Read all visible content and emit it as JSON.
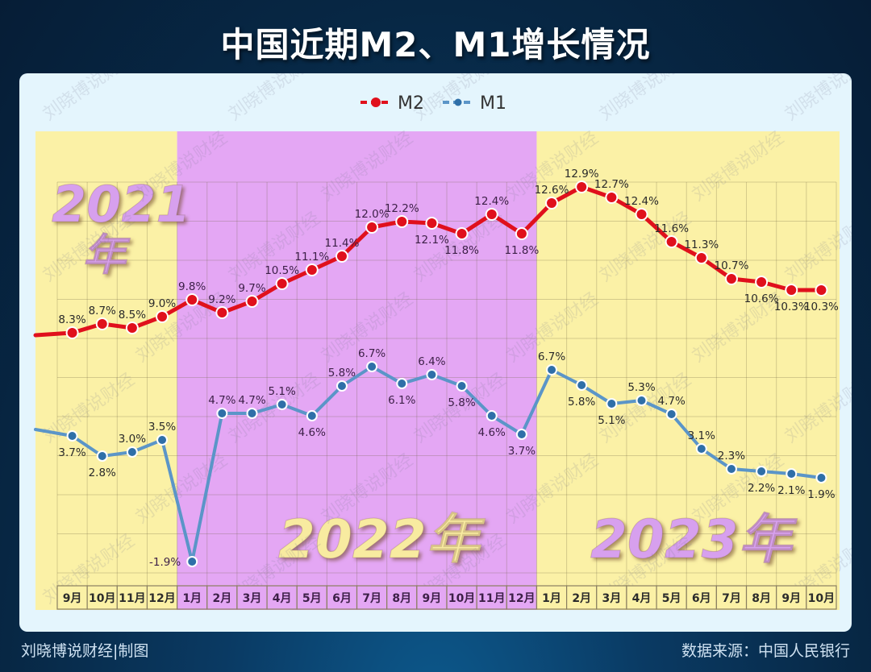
{
  "title": "中国近期M2、M1增长情况",
  "footer": {
    "credit": "刘晓博说财经|制图",
    "source": "数据来源：中国人民银行"
  },
  "watermark": "刘晓博说财经",
  "colors": {
    "m2": "#e0101c",
    "m1": "#5b95c8",
    "m1_marker": "#2f6fa8",
    "band_yellow": "#fbf1a6",
    "band_purple": "#e4a7f4",
    "year_lilac": "#d7a0ee",
    "year_cream": "#f8eba0"
  },
  "year_labels": {
    "y2021_line1": "2021",
    "y2021_line2": "年",
    "y2022": "2022年",
    "y2023": "2023年"
  },
  "chart_data": {
    "type": "line",
    "title": "中国近期M2、M1增长情况",
    "xlabel": "",
    "ylabel": "",
    "unit": "%",
    "legend": [
      "M2",
      "M1"
    ],
    "legend_position": "top-center",
    "grid": true,
    "categories": [
      "9月",
      "10月",
      "11月",
      "12月",
      "1月",
      "2月",
      "3月",
      "4月",
      "5月",
      "6月",
      "7月",
      "8月",
      "9月",
      "10月",
      "11月",
      "12月",
      "1月",
      "2月",
      "3月",
      "4月",
      "5月",
      "6月",
      "7月",
      "8月",
      "9月",
      "10月"
    ],
    "year_groups": [
      {
        "label": "2021年",
        "start": 0,
        "end": 3
      },
      {
        "label": "2022年",
        "start": 4,
        "end": 15
      },
      {
        "label": "2023年",
        "start": 16,
        "end": 25
      }
    ],
    "series": [
      {
        "name": "M2",
        "values": [
          8.3,
          8.7,
          8.5,
          9.0,
          9.8,
          9.2,
          9.7,
          10.5,
          11.1,
          11.4,
          12.0,
          12.2,
          12.1,
          11.8,
          12.4,
          11.8,
          12.6,
          12.9,
          12.7,
          12.4,
          11.6,
          11.3,
          10.7,
          10.6,
          10.3,
          10.3
        ],
        "labels": [
          "8.3%",
          "8.7%",
          "8.5%",
          "9.0%",
          "9.8%",
          "9.2%",
          "9.7%",
          "10.5%",
          "11.1%",
          "11.4%",
          "12.0%",
          "12.2%",
          "12.1%",
          "11.8%",
          "12.4%",
          "11.8%",
          "12.6%",
          "12.9%",
          "12.7%",
          "12.4%",
          "11.6%",
          "11.3%",
          "10.7%",
          "10.6%",
          "10.3%",
          "10.3%"
        ]
      },
      {
        "name": "M1",
        "values": [
          3.7,
          2.8,
          3.0,
          3.5,
          -1.9,
          4.7,
          4.7,
          5.1,
          4.6,
          5.8,
          6.7,
          6.1,
          6.4,
          5.8,
          4.6,
          3.7,
          6.7,
          5.8,
          5.1,
          5.3,
          4.7,
          3.1,
          2.3,
          2.2,
          2.1,
          1.9
        ],
        "labels": [
          "3.7%",
          "2.8%",
          "3.0%",
          "3.5%",
          "-1.9%",
          "4.7%",
          "4.7%",
          "5.1%",
          "4.6%",
          "5.8%",
          "6.7%",
          "6.1%",
          "6.4%",
          "5.8%",
          "4.6%",
          "3.7%",
          "6.7%",
          "5.8%",
          "5.1%",
          "5.3%",
          "4.7%",
          "3.1%",
          "2.3%",
          "2.2%",
          "2.1%",
          "1.9%"
        ]
      }
    ]
  },
  "plot": {
    "m2_y": [
      413,
      402,
      407,
      393,
      372,
      388,
      374,
      352,
      335,
      318,
      282,
      275,
      277,
      290,
      266,
      290,
      252,
      232,
      245,
      266,
      300,
      320,
      346,
      350,
      360,
      360
    ],
    "m1_y": [
      541,
      566,
      561,
      546,
      697,
      513,
      513,
      502,
      516,
      479,
      455,
      476,
      465,
      479,
      516,
      539,
      459,
      478,
      501,
      497,
      514,
      557,
      582,
      585,
      588,
      593
    ],
    "m2_label_pos": [
      "above",
      "above",
      "above",
      "above",
      "above",
      "above",
      "above",
      "above",
      "above",
      "above",
      "above",
      "above",
      "below",
      "below",
      "above",
      "below",
      "above",
      "above",
      "above",
      "above",
      "above",
      "above",
      "above",
      "below",
      "below",
      "below"
    ],
    "m1_label_pos": [
      "below",
      "below",
      "above",
      "above",
      "left",
      "above",
      "above",
      "above",
      "below",
      "above",
      "above",
      "below",
      "above",
      "below",
      "below",
      "below",
      "above",
      "below",
      "below",
      "above",
      "above",
      "above",
      "above",
      "below",
      "below",
      "below"
    ]
  }
}
